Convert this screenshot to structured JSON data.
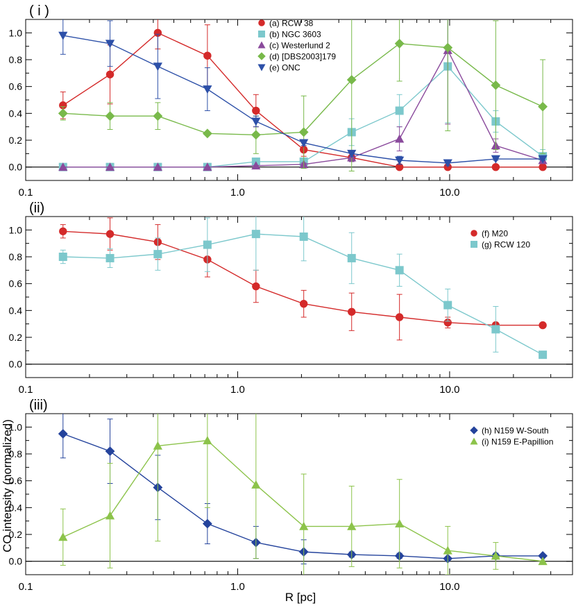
{
  "figure": {
    "xlabel": "R [pc]",
    "ylabel": "CO intensity (normalized)"
  },
  "chart_data": [
    {
      "type": "line",
      "panel_label": "( i )",
      "xscale": "log",
      "xlim": [
        0.1,
        38
      ],
      "ylim": [
        -0.1,
        1.1
      ],
      "xticks": [
        {
          "value": 0.1,
          "label": "0.1"
        },
        {
          "value": 1.0,
          "label": "1.0"
        },
        {
          "value": 10.0,
          "label": "10.0"
        }
      ],
      "yticks": [
        {
          "value": 0.0,
          "label": "0.0"
        },
        {
          "value": 0.2,
          "label": "0.2"
        },
        {
          "value": 0.4,
          "label": "0.4"
        },
        {
          "value": 0.6,
          "label": "0.6"
        },
        {
          "value": 0.8,
          "label": "0.8"
        },
        {
          "value": 1.0,
          "label": "1.0"
        }
      ],
      "legend_position": "top-center",
      "series": [
        {
          "name": "(a) RCW 38",
          "color": "#d42a2a",
          "marker": "circle",
          "x": [
            0.15,
            0.25,
            0.42,
            0.72,
            1.22,
            2.05,
            3.45,
            5.8,
            9.8,
            16.5,
            27.5
          ],
          "y": [
            0.46,
            0.69,
            1.0,
            0.83,
            0.42,
            0.13,
            0.07,
            0.0,
            0.0,
            0.0,
            0.0
          ],
          "err": [
            0.1,
            0.22,
            0.12,
            0.23,
            0.12,
            0.05,
            0.02,
            0.0,
            0.0,
            0.0,
            0.0
          ]
        },
        {
          "name": "(b) NGC 3603",
          "color": "#7cc8cc",
          "marker": "square",
          "x": [
            0.15,
            0.25,
            0.42,
            0.72,
            1.22,
            2.05,
            3.45,
            5.8,
            9.8,
            16.5,
            27.5
          ],
          "y": [
            0.0,
            0.0,
            0.0,
            0.0,
            0.04,
            0.04,
            0.26,
            0.42,
            0.75,
            0.34,
            0.08
          ],
          "err": [
            0.0,
            0.0,
            0.0,
            0.0,
            0.0,
            0.02,
            0.1,
            0.12,
            0.42,
            0.08,
            0.05
          ]
        },
        {
          "name": "(c) Westerlund 2",
          "color": "#8a4a9c",
          "marker": "triangle-up",
          "x": [
            0.15,
            0.25,
            0.42,
            0.72,
            1.22,
            2.05,
            3.45,
            5.8,
            9.8,
            16.5,
            27.5
          ],
          "y": [
            0.0,
            0.0,
            0.0,
            0.0,
            0.01,
            0.02,
            0.07,
            0.21,
            0.87,
            0.16,
            0.05
          ],
          "err": [
            0.0,
            0.0,
            0.0,
            0.0,
            0.0,
            0.01,
            0.03,
            0.09,
            0.55,
            0.05,
            0.02
          ]
        },
        {
          "name": "(d) [DBS2003]179",
          "color": "#78b94a",
          "marker": "diamond",
          "x": [
            0.15,
            0.25,
            0.42,
            0.72,
            1.22,
            2.05,
            3.45,
            5.8,
            9.8,
            16.5,
            27.5
          ],
          "y": [
            0.4,
            0.38,
            0.38,
            0.25,
            0.24,
            0.26,
            0.65,
            0.92,
            0.89,
            0.61,
            0.45
          ],
          "err": [
            0.05,
            0.1,
            0.1,
            0.0,
            0.14,
            0.27,
            0.68,
            0.28,
            0.62,
            0.48,
            0.35
          ]
        },
        {
          "name": "(e) ONC",
          "color": "#2d50a8",
          "marker": "triangle-down",
          "x": [
            0.15,
            0.25,
            0.42,
            0.72,
            1.22,
            2.05,
            3.45,
            5.8,
            9.8,
            16.5,
            27.5
          ],
          "y": [
            0.98,
            0.92,
            0.75,
            0.58,
            0.34,
            0.18,
            0.1,
            0.05,
            0.03,
            0.06,
            0.06
          ],
          "err": [
            0.14,
            0.17,
            0.24,
            0.16,
            0.04,
            0.02,
            0.02,
            0.03,
            0.02,
            0.01,
            0.01
          ]
        }
      ]
    },
    {
      "type": "line",
      "panel_label": "(ii)",
      "xscale": "log",
      "xlim": [
        0.1,
        38
      ],
      "ylim": [
        -0.1,
        1.1
      ],
      "xticks": [
        {
          "value": 0.1,
          "label": "0.1"
        },
        {
          "value": 1.0,
          "label": "1.0"
        },
        {
          "value": 10.0,
          "label": "10.0"
        }
      ],
      "yticks": [
        {
          "value": 0.0,
          "label": "0.0"
        },
        {
          "value": 0.2,
          "label": "0.2"
        },
        {
          "value": 0.4,
          "label": "0.4"
        },
        {
          "value": 0.6,
          "label": "0.6"
        },
        {
          "value": 0.8,
          "label": "0.8"
        },
        {
          "value": 1.0,
          "label": "1.0"
        }
      ],
      "legend_position": "top-right",
      "series": [
        {
          "name": "(f) M20",
          "color": "#d42a2a",
          "marker": "circle",
          "x": [
            0.15,
            0.25,
            0.42,
            0.72,
            1.22,
            2.05,
            3.45,
            5.8,
            9.8,
            16.5,
            27.5
          ],
          "y": [
            0.99,
            0.97,
            0.91,
            0.78,
            0.58,
            0.45,
            0.39,
            0.35,
            0.31,
            0.29,
            0.29
          ],
          "err": [
            0.05,
            0.12,
            0.13,
            0.13,
            0.12,
            0.1,
            0.14,
            0.17,
            0.04,
            0.02,
            0.0
          ]
        },
        {
          "name": "(g) RCW 120",
          "color": "#7cc8cc",
          "marker": "square",
          "x": [
            0.15,
            0.25,
            0.42,
            0.72,
            1.22,
            2.05,
            3.45,
            5.8,
            9.8,
            16.5,
            27.5
          ],
          "y": [
            0.8,
            0.79,
            0.82,
            0.89,
            0.97,
            0.95,
            0.79,
            0.7,
            0.44,
            0.26,
            0.07
          ],
          "err": [
            0.05,
            0.07,
            0.12,
            0.2,
            0.27,
            0.18,
            0.19,
            0.12,
            0.12,
            0.17,
            0.0
          ]
        }
      ]
    },
    {
      "type": "line",
      "panel_label": "(iii)",
      "xscale": "log",
      "xlim": [
        0.1,
        38
      ],
      "ylim": [
        -0.1,
        1.1
      ],
      "xticks": [
        {
          "value": 0.1,
          "label": "0.1"
        },
        {
          "value": 1.0,
          "label": "1.0"
        },
        {
          "value": 10.0,
          "label": "10.0"
        }
      ],
      "yticks": [
        {
          "value": 0.0,
          "label": "0.0"
        },
        {
          "value": 0.2,
          "label": "0.2"
        },
        {
          "value": 0.4,
          "label": "0.4"
        },
        {
          "value": 0.6,
          "label": "0.6"
        },
        {
          "value": 0.8,
          "label": "0.8"
        },
        {
          "value": 1.0,
          "label": "1.0"
        }
      ],
      "legend_position": "top-right",
      "series": [
        {
          "name": "(h) N159 W-South",
          "color": "#24439c",
          "marker": "diamond",
          "x": [
            0.15,
            0.25,
            0.42,
            0.72,
            1.22,
            2.05,
            3.45,
            5.8,
            9.8,
            16.5,
            27.5
          ],
          "y": [
            0.95,
            0.82,
            0.55,
            0.28,
            0.14,
            0.07,
            0.05,
            0.04,
            0.02,
            0.04,
            0.04
          ],
          "err": [
            0.18,
            0.24,
            0.24,
            0.15,
            0.12,
            0.09,
            0.02,
            0.02,
            0.01,
            0.02,
            0.0
          ]
        },
        {
          "name": "(i) N159 E-Papillion",
          "color": "#8cc34a",
          "marker": "triangle-up",
          "x": [
            0.15,
            0.25,
            0.42,
            0.72,
            1.22,
            2.05,
            3.45,
            5.8,
            9.8,
            16.5,
            27.5
          ],
          "y": [
            0.18,
            0.34,
            0.86,
            0.9,
            0.57,
            0.26,
            0.26,
            0.28,
            0.08,
            0.04,
            0.0
          ],
          "err": [
            0.21,
            0.39,
            0.71,
            0.5,
            0.55,
            0.39,
            0.3,
            0.33,
            0.18,
            0.1,
            0.0
          ]
        }
      ]
    }
  ]
}
